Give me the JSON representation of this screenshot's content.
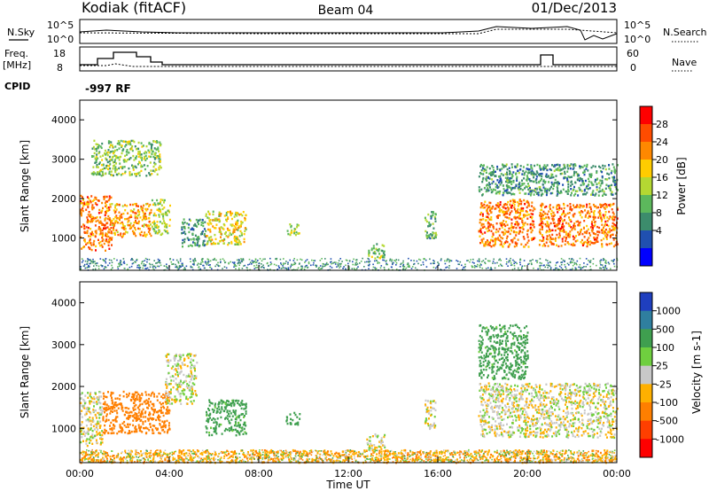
{
  "header": {
    "station": "Kodiak (fitACF)",
    "beam": "Beam 04",
    "date": "01/Dec/2013"
  },
  "noise_panel": {
    "left_label": "N.Sky",
    "right_label": "N.Search",
    "left_ticks": [
      "10^5",
      "10^0"
    ],
    "right_ticks": [
      "10^5",
      "10^0"
    ]
  },
  "freq_panel": {
    "left_label_1": "Freq.",
    "left_label_2": "[MHz]",
    "right_label": "Nave",
    "left_ticks": [
      "18",
      "8"
    ],
    "right_ticks": [
      "60",
      "0"
    ]
  },
  "cpid": {
    "label": "CPID",
    "value": "-997 RF"
  },
  "x_axis": {
    "label": "Time UT",
    "ticks": [
      "00:00",
      "04:00",
      "08:00",
      "12:00",
      "16:00",
      "20:00",
      "00:00"
    ]
  },
  "colorbars": {
    "power": {
      "label": "Power [dB]",
      "ticks": [
        "28",
        "24",
        "20",
        "16",
        "12",
        "8",
        "4"
      ],
      "colors": [
        "#ff0000",
        "#ff4c00",
        "#ff8800",
        "#ffcc00",
        "#b4d832",
        "#5cb85c",
        "#3c8c6c",
        "#2050b0",
        "#0000ff"
      ]
    },
    "velocity": {
      "label": "Velocity [m s-1]",
      "ticks": [
        "1000",
        "500",
        "100",
        "25",
        "-25",
        "-100",
        "-500",
        "-1000"
      ],
      "colors": [
        "#1f3fbf",
        "#2f7f9f",
        "#3f9f4f",
        "#6fcf3f",
        "#c8c8c8",
        "#ffb000",
        "#ff7f00",
        "#ff3f00",
        "#ff0000"
      ]
    }
  },
  "chart_data": [
    {
      "type": "heatmap",
      "title": "Power",
      "xlabel": "Time UT",
      "ylabel": "Slant Range [km]",
      "xlim": [
        0,
        24
      ],
      "ylim": [
        180,
        4500
      ],
      "yticks": [
        1000,
        2000,
        3000,
        4000
      ],
      "colorbar": {
        "label": "Power [dB]",
        "ticks": [
          28,
          24,
          20,
          16,
          12,
          8,
          4
        ]
      },
      "patches": [
        {
          "t0": 0.0,
          "t1": 1.4,
          "r0": 700,
          "r1": 2100,
          "value": 24
        },
        {
          "t0": 1.4,
          "t1": 3.2,
          "r0": 1050,
          "r1": 1900,
          "value": 22
        },
        {
          "t0": 3.2,
          "t1": 4.0,
          "r0": 1100,
          "r1": 2000,
          "value": 16
        },
        {
          "t0": 4.5,
          "t1": 5.6,
          "r0": 800,
          "r1": 1500,
          "value": 10
        },
        {
          "t0": 5.6,
          "t1": 7.4,
          "r0": 850,
          "r1": 1700,
          "value": 18
        },
        {
          "t0": 9.2,
          "t1": 9.8,
          "r0": 1100,
          "r1": 1400,
          "value": 16
        },
        {
          "t0": 12.8,
          "t1": 13.6,
          "r0": 500,
          "r1": 900,
          "value": 14
        },
        {
          "t0": 15.4,
          "t1": 15.9,
          "r0": 1000,
          "r1": 1700,
          "value": 12
        },
        {
          "t0": 17.8,
          "t1": 20.3,
          "r0": 800,
          "r1": 2000,
          "value": 24
        },
        {
          "t0": 20.5,
          "t1": 24.0,
          "r0": 800,
          "r1": 1900,
          "value": 24
        },
        {
          "t0": 0.5,
          "t1": 3.6,
          "r0": 2600,
          "r1": 3500,
          "value": 14
        },
        {
          "t0": 17.8,
          "t1": 24.0,
          "r0": 2100,
          "r1": 2900,
          "value": 10
        }
      ]
    },
    {
      "type": "heatmap",
      "title": "Velocity",
      "xlabel": "Time UT",
      "ylabel": "Slant Range [km]",
      "xlim": [
        0,
        24
      ],
      "ylim": [
        180,
        4500
      ],
      "yticks": [
        1000,
        2000,
        3000,
        4000
      ],
      "colorbar": {
        "label": "Velocity [m s-1]",
        "ticks": [
          1000,
          500,
          100,
          25,
          -25,
          -100,
          -500,
          -1000
        ]
      },
      "patches": [
        {
          "t0": 0.0,
          "t1": 1.0,
          "r0": 600,
          "r1": 1900,
          "value": 0
        },
        {
          "t0": 1.0,
          "t1": 4.0,
          "r0": 900,
          "r1": 1900,
          "value": -200
        },
        {
          "t0": 3.8,
          "t1": 5.2,
          "r0": 1600,
          "r1": 2800,
          "value": 0
        },
        {
          "t0": 5.6,
          "t1": 7.4,
          "r0": 850,
          "r1": 1700,
          "value": 150
        },
        {
          "t0": 9.2,
          "t1": 9.8,
          "r0": 1100,
          "r1": 1400,
          "value": 200
        },
        {
          "t0": 12.8,
          "t1": 13.6,
          "r0": 500,
          "r1": 900,
          "value": 0
        },
        {
          "t0": 15.4,
          "t1": 15.9,
          "r0": 1000,
          "r1": 1700,
          "value": 0
        },
        {
          "t0": 17.8,
          "t1": 24.0,
          "r0": 800,
          "r1": 2100,
          "value": 0
        },
        {
          "t0": 17.8,
          "t1": 20.0,
          "r0": 2200,
          "r1": 3500,
          "value": 150
        },
        {
          "t0": 0.0,
          "t1": 24.0,
          "r0": 200,
          "r1": 500,
          "value": -80
        }
      ]
    }
  ]
}
